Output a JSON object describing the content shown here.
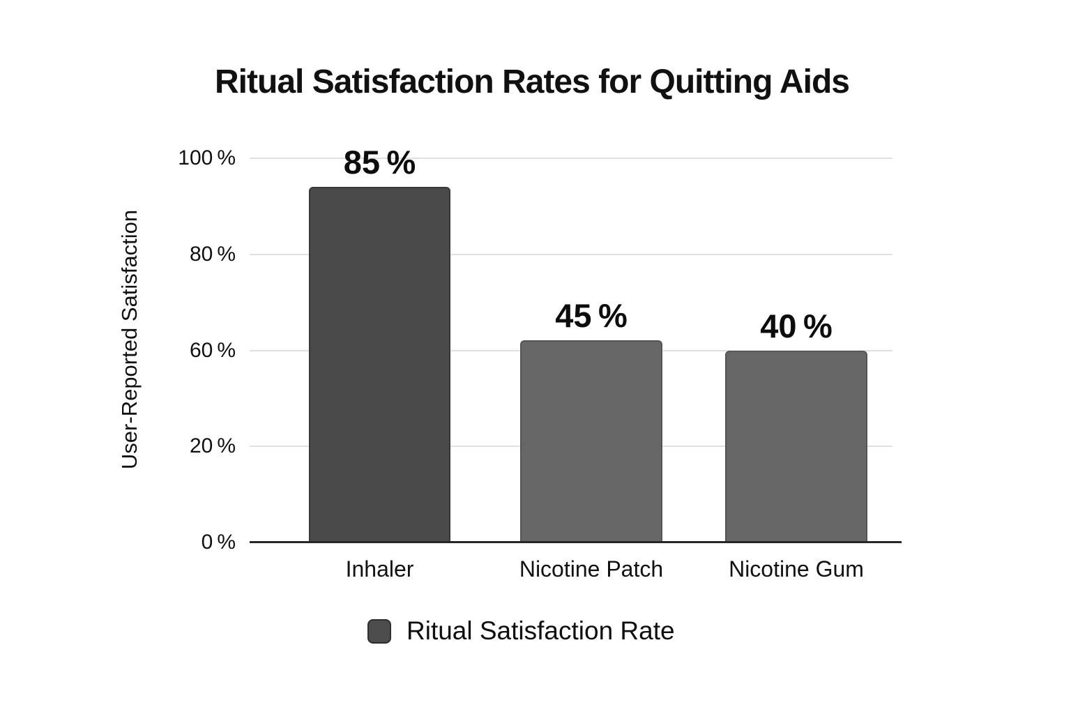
{
  "chart_data": {
    "type": "bar",
    "title": "Ritual Satisfaction Rates for Quitting Aids",
    "xlabel": "",
    "ylabel": "User-Reported Satisfaction",
    "categories": [
      "Inhaler",
      "Nicotine Patch",
      "Nicotine Gum"
    ],
    "series": [
      {
        "name": "Ritual Satisfaction Rate",
        "values": [
          85,
          45,
          40
        ]
      }
    ],
    "ylim": [
      0,
      100
    ],
    "grid": "horizontal",
    "legend_position": "bottom",
    "y_axis": {
      "tick_labels": [
        "100 %",
        "80 %",
        "60 %",
        "20 %",
        "0 %"
      ],
      "note": "ticks evenly spaced; 40 % tick not shown"
    },
    "bars": [
      {
        "category": "Inhaler",
        "value": 85,
        "label": "85 %",
        "display_fraction": 0.926,
        "color": "#4a4a4a",
        "border_color": "#383838"
      },
      {
        "category": "Nicotine Patch",
        "value": 45,
        "label": "45 %",
        "display_fraction": 0.527,
        "color": "#676767",
        "border_color": "#555555"
      },
      {
        "category": "Nicotine Gum",
        "value": 40,
        "label": "40 %",
        "display_fraction": 0.499,
        "color": "#676767",
        "border_color": "#555555"
      }
    ],
    "legend": {
      "label": "Ritual Satisfaction Rate",
      "swatch_color": "#4d4d4d"
    },
    "colors": {
      "background": "#ffffff",
      "gridline": "#e0e0e0",
      "axis_line": "#272727",
      "text": "#111111"
    }
  }
}
